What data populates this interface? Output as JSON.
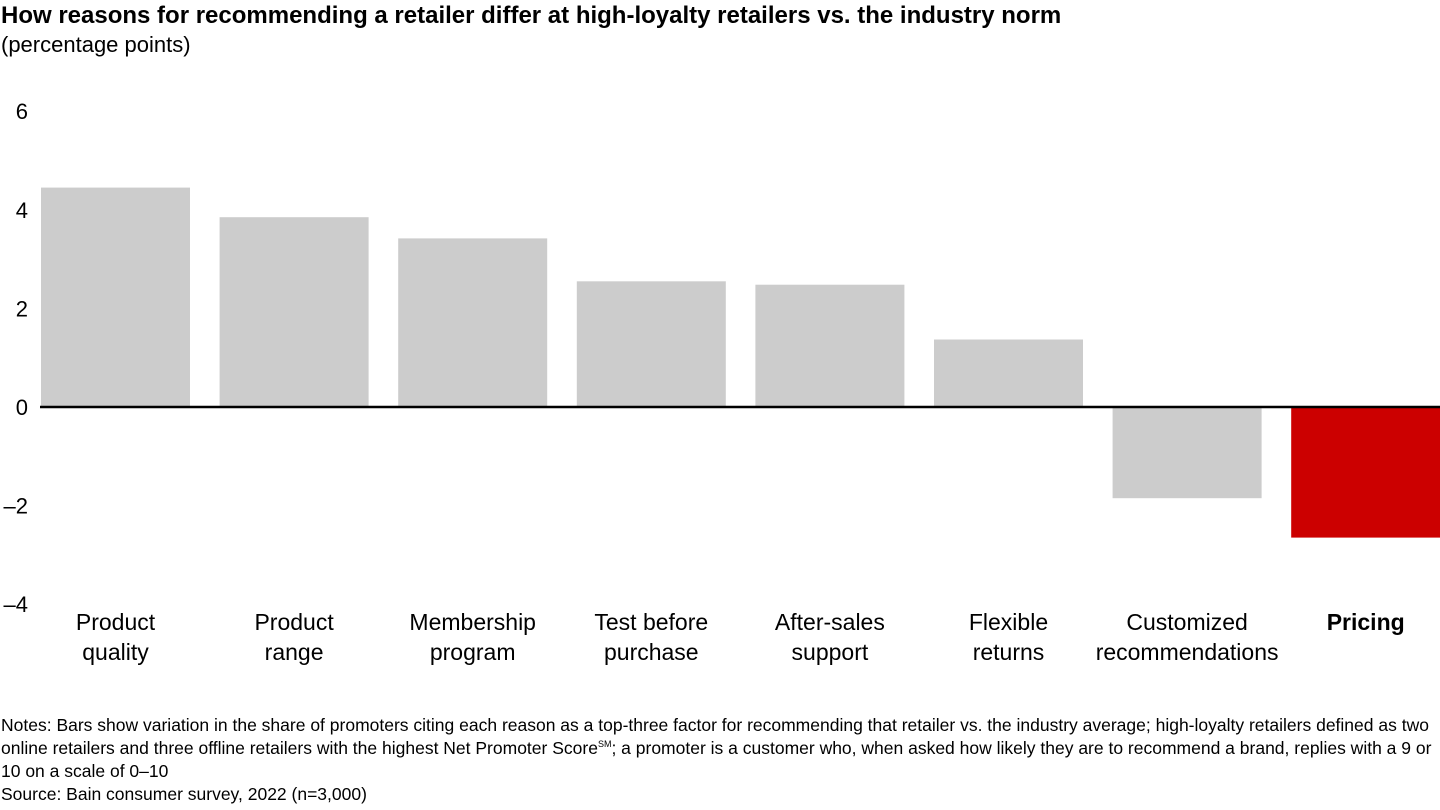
{
  "title": "How reasons for recommending a retailer differ at high-loyalty retailers vs. the industry norm",
  "subtitle": "(percentage points)",
  "notes": {
    "line1": "Notes: Bars show variation in the share of promoters citing each reason as a top-three factor for recommending that retailer vs. the industry average; high-loyalty retailers defined as two online retailers and three offline retailers with the highest Net Promoter Score",
    "sup": "SM",
    "line2": "; a promoter is a customer who, when asked how likely they are to recommend a brand, replies with a 9 or 10 on a scale of 0–10",
    "source": "Source: Bain consumer survey, 2022 (n=3,000)"
  },
  "colors": {
    "default_bar": "#cccccc",
    "highlight_bar": "#cc0000",
    "axis": "#000000"
  },
  "chart_data": {
    "type": "bar",
    "title": "How reasons for recommending a retailer differ at high-loyalty retailers vs. the industry norm",
    "subtitle": "(percentage points)",
    "categories": [
      [
        "Product",
        "quality"
      ],
      [
        "Product",
        "range"
      ],
      [
        "Membership",
        "program"
      ],
      [
        "Test before",
        "purchase"
      ],
      [
        "After-sales",
        "support"
      ],
      [
        "Flexible",
        "returns"
      ],
      [
        "Customized",
        "recommendations"
      ],
      [
        "Pricing"
      ]
    ],
    "values": [
      4.45,
      3.85,
      3.42,
      2.55,
      2.48,
      1.37,
      -1.85,
      -2.65
    ],
    "highlight": [
      false,
      false,
      false,
      false,
      false,
      false,
      false,
      true
    ],
    "ylim": [
      -4,
      6
    ],
    "yticks": [
      6,
      4,
      2,
      0,
      -2,
      -4
    ],
    "ytick_labels": [
      "6",
      "4",
      "2",
      "0",
      "–2",
      "–4"
    ],
    "xlabel": "",
    "ylabel": "",
    "grid": false,
    "legend": "none"
  }
}
